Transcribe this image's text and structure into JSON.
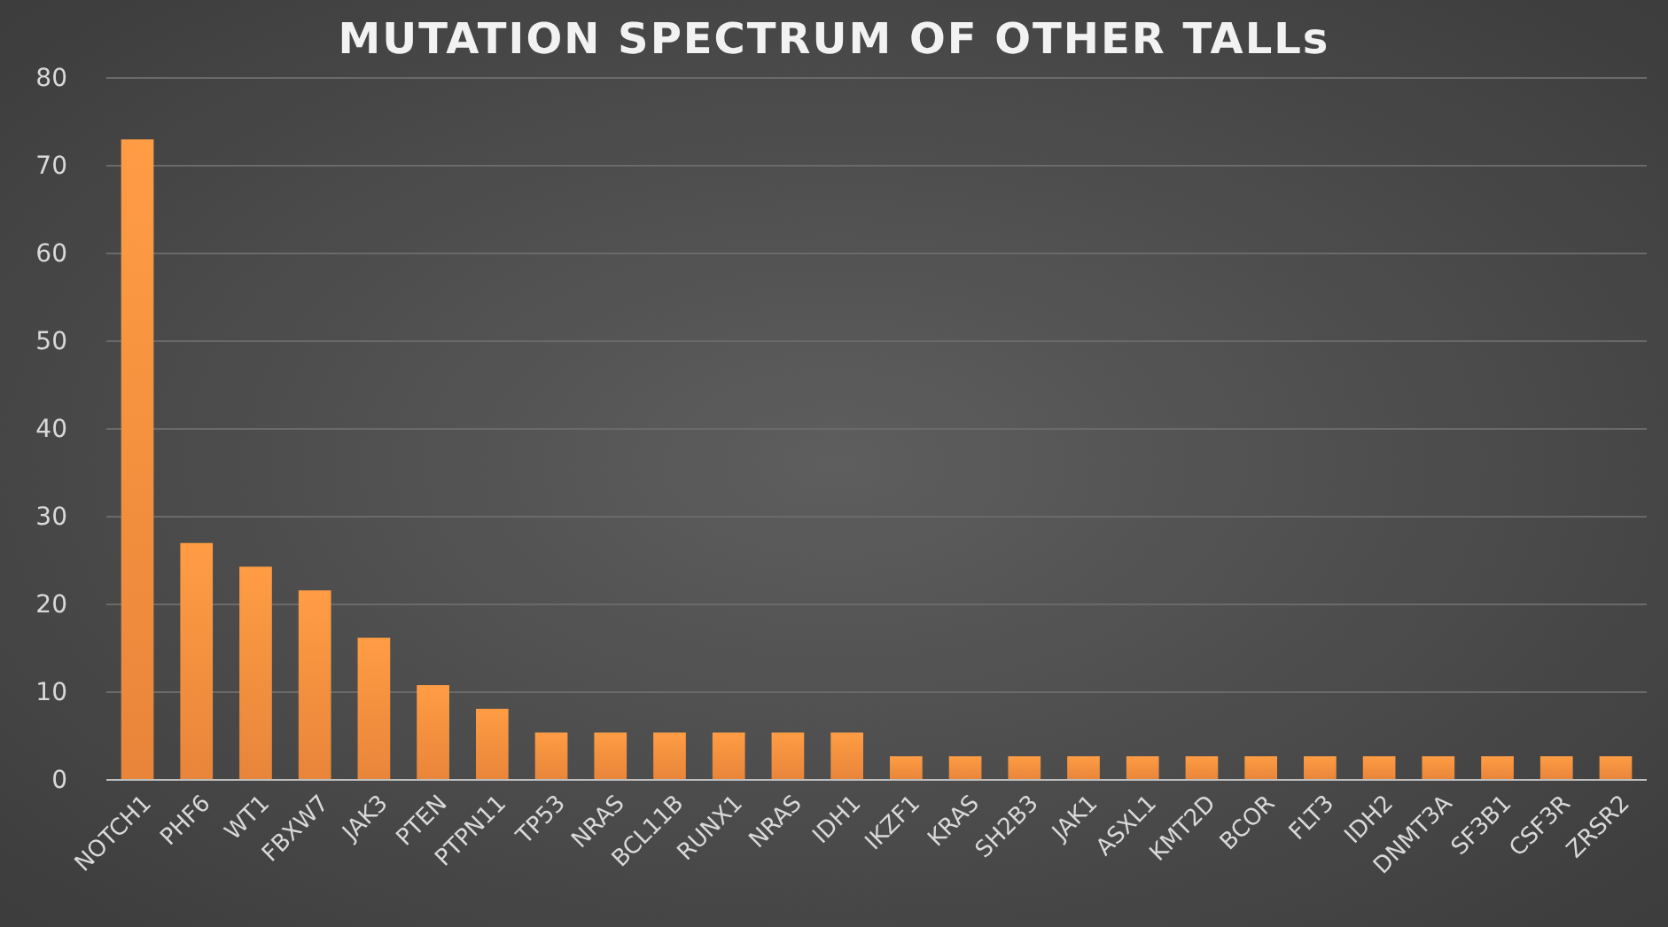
{
  "chart_data": {
    "type": "bar",
    "title": "MUTATION SPECTRUM OF OTHER TALLs",
    "categories": [
      "NOTCH1",
      "PHF6",
      "WT1",
      "FBXW7",
      "JAK3",
      "PTEN",
      "PTPN11",
      "TP53",
      "NRAS",
      "BCL11B",
      "RUNX1",
      "NRAS",
      "IDH1",
      "IKZF1",
      "KRAS",
      "SH2B3",
      "JAK1",
      "ASXL1",
      "KMT2D",
      "BCOR",
      "FLT3",
      "IDH2",
      "DNMT3A",
      "SF3B1",
      "CSF3R",
      "ZRSR2"
    ],
    "values": [
      73,
      27,
      24.3,
      21.6,
      16.2,
      10.8,
      8.1,
      5.4,
      5.4,
      5.4,
      5.4,
      5.4,
      5.4,
      2.7,
      2.7,
      2.7,
      2.7,
      2.7,
      2.7,
      2.7,
      2.7,
      2.7,
      2.7,
      2.7,
      2.7,
      2.7
    ],
    "color": "#f08a3c",
    "ylim": [
      0,
      80
    ],
    "yticks": [
      0,
      10,
      20,
      30,
      40,
      50,
      60,
      70,
      80
    ],
    "grid": "y"
  }
}
